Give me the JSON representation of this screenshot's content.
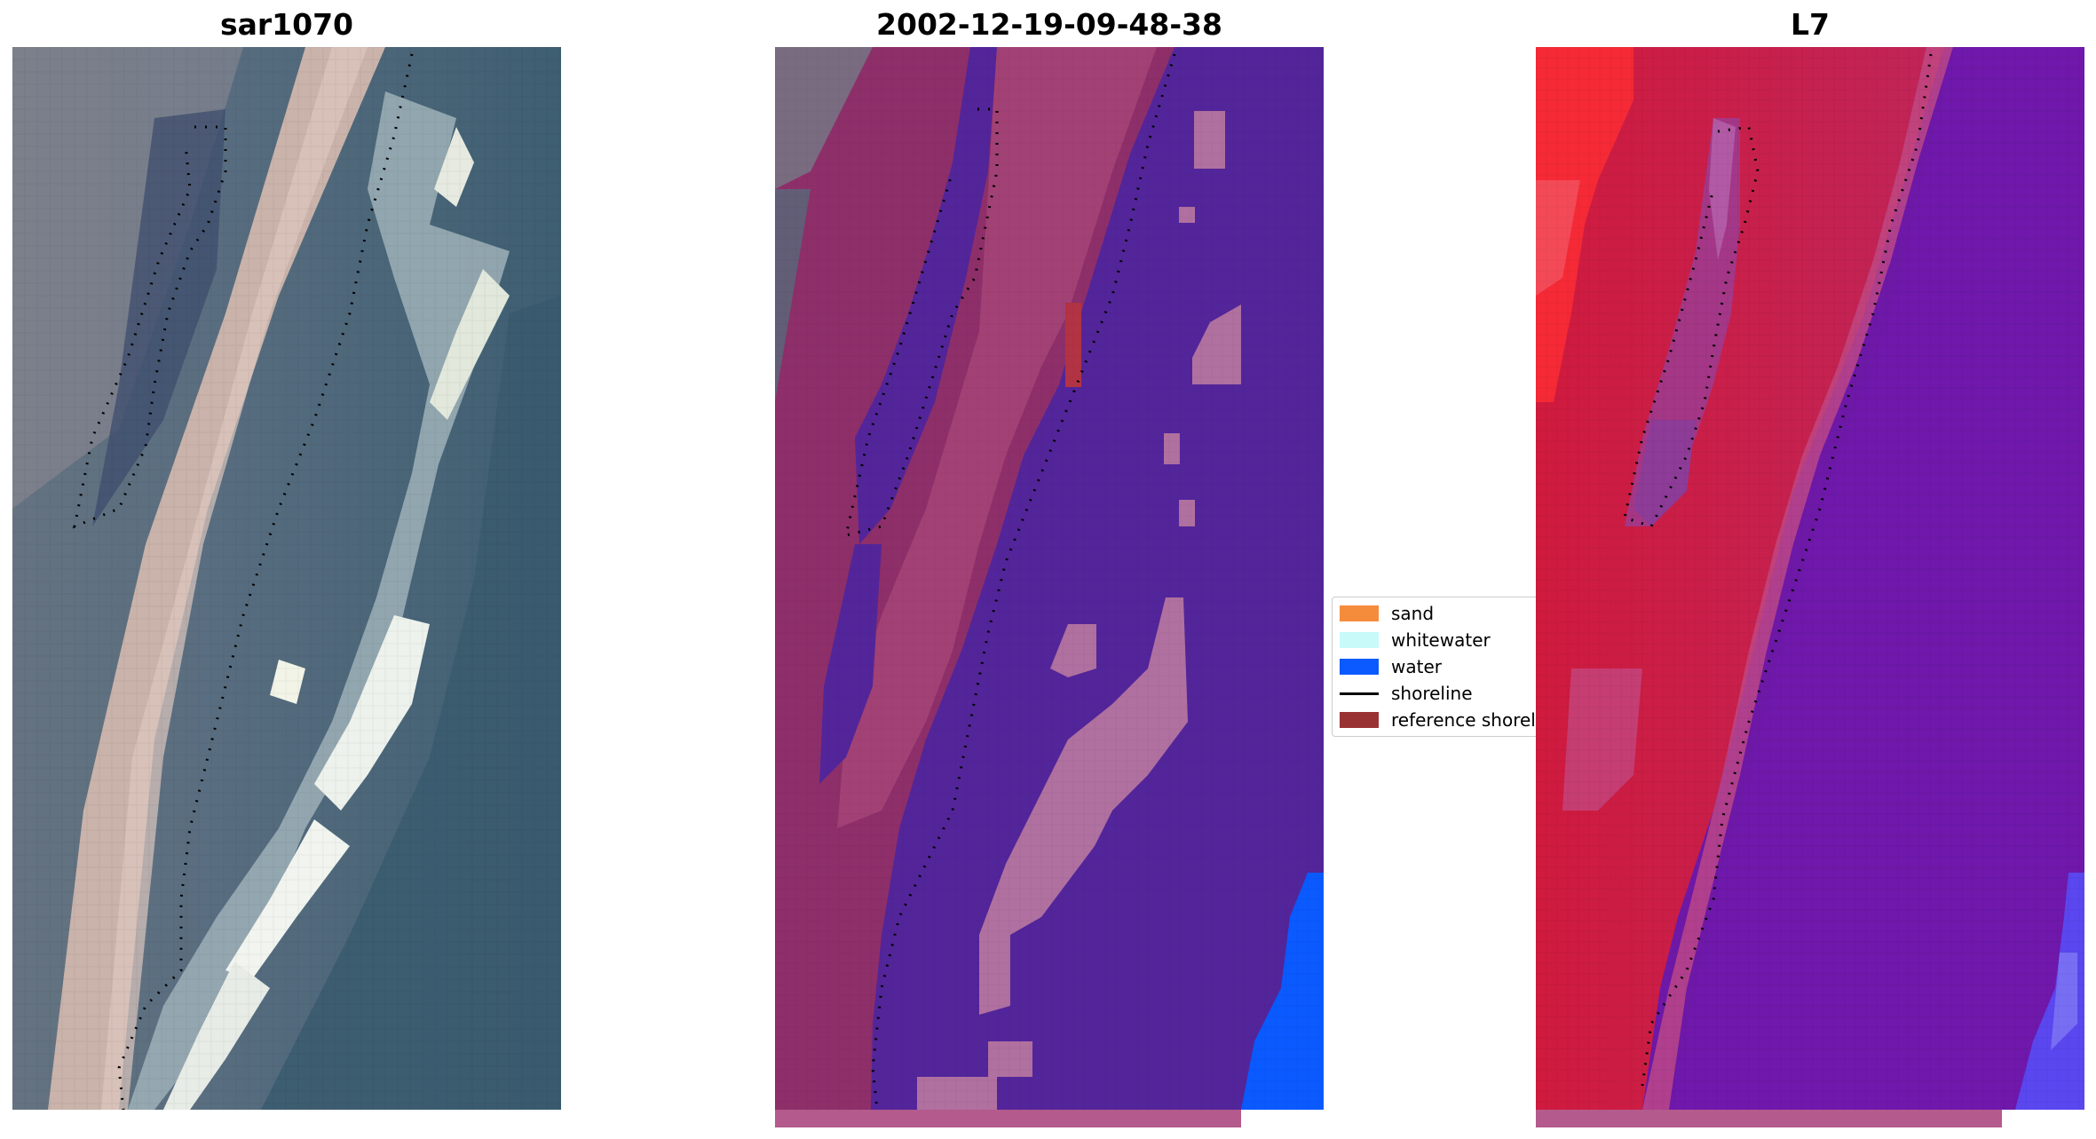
{
  "panels": [
    {
      "title": "sar1070"
    },
    {
      "title": "2002-12-19-09-48-38"
    },
    {
      "title": "L7"
    }
  ],
  "legend": {
    "items": [
      {
        "label": "sand",
        "color": "#f58c3c",
        "kind": "patch"
      },
      {
        "label": "whitewater",
        "color": "#c8fafa",
        "kind": "patch"
      },
      {
        "label": "water",
        "color": "#0a5aff",
        "kind": "patch"
      },
      {
        "label": "shoreline",
        "color": "#000000",
        "kind": "line"
      },
      {
        "label": "reference shoreline",
        "color": "#993333",
        "kind": "patch"
      }
    ]
  },
  "colors": {
    "classified_sand": "#a0406e",
    "classified_other": "#53259a",
    "classified_water": "#0a5aff",
    "classified_whitewater": "#b070a0",
    "l7_land": "#cc1e4a",
    "l7_water": "#6e18a8",
    "rgb_sand": "#c7b3ab",
    "rgb_water": "#3f5f7a"
  }
}
